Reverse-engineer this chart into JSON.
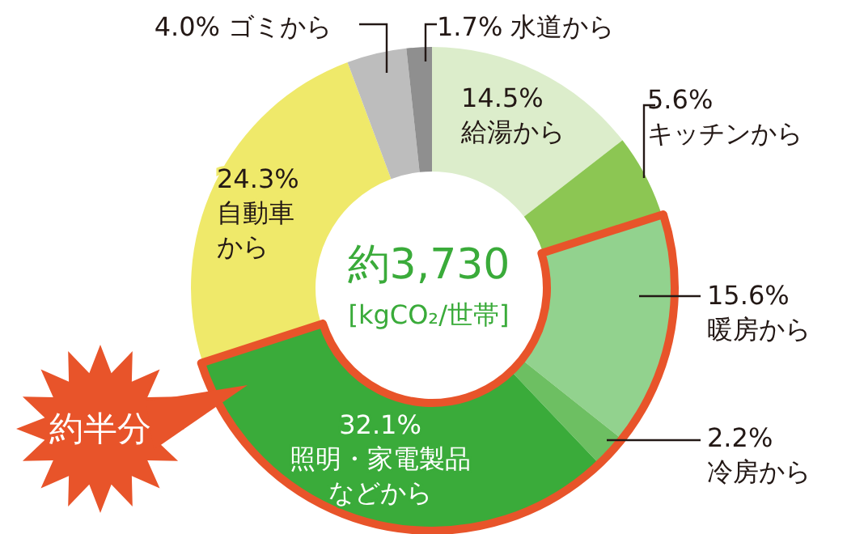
{
  "chart_data": {
    "type": "donut",
    "categories": [
      "給湯から",
      "キッチンから",
      "暖房から",
      "冷房から",
      "照明・家電製品などから",
      "自動車から",
      "ゴミから",
      "水道から"
    ],
    "values": [
      14.5,
      5.6,
      15.6,
      2.2,
      32.1,
      24.3,
      4.0,
      1.7
    ],
    "colors": [
      "#dcedcb",
      "#8cc653",
      "#92d28e",
      "#6dbf62",
      "#3aab3a",
      "#efe96a",
      "#bdbdbd",
      "#8f8f8f"
    ],
    "value_labels": [
      "14.5%",
      "5.6%",
      "15.6%",
      "2.2%",
      "32.1%",
      "24.3%",
      "4.0%",
      "1.7%"
    ],
    "annotations": [
      "約3,730",
      "[kgCO₂/世帯]",
      "約半分"
    ]
  }
}
